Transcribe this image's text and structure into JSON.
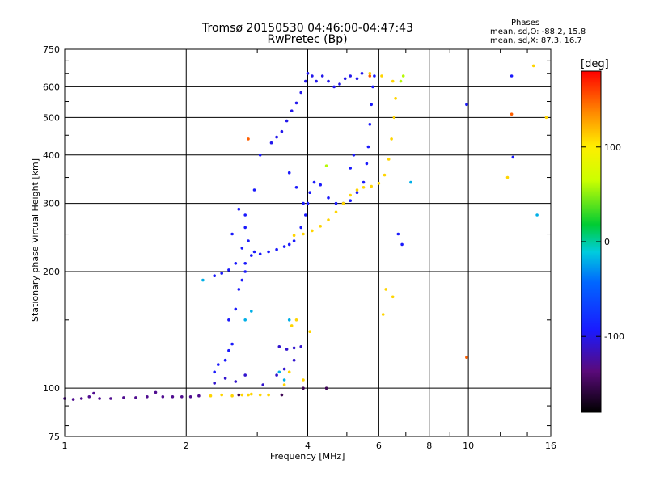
{
  "header": {
    "title_line1": "Tromsø 20150530 04:46:00-04:47:43",
    "title_line2": "RwPretec (Bp)"
  },
  "stats": {
    "heading": "Phases",
    "line_o": "mean, sd,O: -88.2, 15.8",
    "line_x": "mean, sd,X:  87.3, 16.7"
  },
  "chart_data": {
    "type": "scatter",
    "xlabel": "Frequency [MHz]",
    "ylabel": "Stationary phase Virtual Height [km]",
    "x_scale": "log",
    "y_scale": "log",
    "xlim": [
      1,
      16
    ],
    "ylim": [
      75,
      750
    ],
    "x_ticks": [
      1,
      2,
      4,
      6,
      8,
      10,
      16
    ],
    "x_tick_labels": [
      "1",
      "2",
      "4",
      "6",
      "8",
      "10",
      "16"
    ],
    "y_ticks": [
      75,
      100,
      200,
      300,
      400,
      500,
      600,
      750
    ],
    "y_tick_labels": [
      "75",
      "100",
      "200",
      "300",
      "400",
      "500",
      "600",
      "750"
    ],
    "grid": true,
    "colorbar": {
      "label": "[deg]",
      "range": [
        -180,
        180
      ],
      "ticks": [
        -100,
        0,
        100
      ],
      "tick_labels": [
        "-100",
        "0",
        "100"
      ]
    },
    "series": [
      {
        "color_deg": -130,
        "points": [
          [
            1.0,
            94
          ],
          [
            1.05,
            93.5
          ],
          [
            1.1,
            94
          ],
          [
            1.15,
            95
          ],
          [
            1.18,
            97
          ],
          [
            1.22,
            94
          ],
          [
            1.3,
            94
          ],
          [
            1.4,
            94.5
          ],
          [
            1.5,
            94.5
          ],
          [
            1.6,
            95
          ],
          [
            1.68,
            97.5
          ],
          [
            1.75,
            95
          ],
          [
            1.85,
            95
          ],
          [
            1.95,
            95
          ],
          [
            2.05,
            95
          ],
          [
            2.15,
            95.5
          ]
        ]
      },
      {
        "color_deg": 110,
        "points": [
          [
            2.3,
            95.5
          ],
          [
            2.45,
            96
          ],
          [
            2.6,
            95.5
          ],
          [
            2.75,
            96
          ],
          [
            2.9,
            96.5
          ],
          [
            3.05,
            96
          ],
          [
            3.2,
            96
          ]
        ]
      },
      {
        "color_deg": -95,
        "points": [
          [
            2.35,
            110
          ],
          [
            2.4,
            115
          ],
          [
            2.5,
            118
          ],
          [
            2.55,
            125
          ],
          [
            2.6,
            130
          ],
          [
            2.55,
            150
          ],
          [
            2.65,
            160
          ],
          [
            2.7,
            180
          ],
          [
            2.75,
            190
          ],
          [
            2.8,
            200
          ],
          [
            2.8,
            210
          ],
          [
            2.75,
            230
          ],
          [
            2.85,
            240
          ],
          [
            2.8,
            260
          ],
          [
            2.8,
            280
          ],
          [
            2.9,
            220
          ],
          [
            2.95,
            225
          ],
          [
            3.05,
            222
          ],
          [
            3.2,
            225
          ],
          [
            3.35,
            228
          ],
          [
            3.5,
            232
          ],
          [
            3.6,
            235
          ],
          [
            3.7,
            240
          ],
          [
            3.85,
            260
          ],
          [
            3.95,
            280
          ],
          [
            4.0,
            300
          ],
          [
            4.05,
            320
          ],
          [
            4.15,
            340
          ],
          [
            4.3,
            335
          ],
          [
            4.5,
            310
          ],
          [
            4.7,
            300
          ],
          [
            4.9,
            300
          ],
          [
            5.1,
            305
          ],
          [
            5.3,
            320
          ],
          [
            5.5,
            340
          ],
          [
            5.6,
            380
          ],
          [
            5.65,
            420
          ],
          [
            5.7,
            480
          ],
          [
            5.75,
            540
          ],
          [
            5.8,
            600
          ],
          [
            5.85,
            640
          ],
          [
            2.35,
            195
          ],
          [
            2.45,
            198
          ],
          [
            2.55,
            202
          ],
          [
            2.65,
            210
          ]
        ]
      },
      {
        "color_deg": -100,
        "points": [
          [
            3.25,
            430
          ],
          [
            3.35,
            445
          ],
          [
            3.45,
            460
          ],
          [
            3.55,
            490
          ],
          [
            3.65,
            520
          ],
          [
            3.75,
            545
          ],
          [
            3.85,
            580
          ],
          [
            3.95,
            620
          ],
          [
            4.0,
            650
          ],
          [
            4.1,
            640
          ],
          [
            4.2,
            620
          ],
          [
            4.35,
            640
          ],
          [
            4.5,
            620
          ],
          [
            4.65,
            600
          ],
          [
            4.8,
            610
          ],
          [
            4.95,
            630
          ],
          [
            5.1,
            640
          ],
          [
            5.3,
            630
          ],
          [
            5.45,
            650
          ]
        ]
      },
      {
        "color_deg": -110,
        "points": [
          [
            2.35,
            103
          ],
          [
            2.5,
            106
          ],
          [
            2.65,
            104
          ],
          [
            2.8,
            108
          ],
          [
            3.1,
            102
          ],
          [
            3.35,
            108
          ],
          [
            3.5,
            112
          ],
          [
            3.7,
            118
          ],
          [
            3.4,
            128
          ],
          [
            3.55,
            126
          ],
          [
            3.7,
            127
          ],
          [
            3.85,
            128
          ]
        ]
      },
      {
        "color_deg": 110,
        "points": [
          [
            3.7,
            248
          ],
          [
            3.9,
            250
          ],
          [
            4.1,
            255
          ],
          [
            4.3,
            262
          ],
          [
            4.5,
            272
          ],
          [
            4.7,
            285
          ],
          [
            4.9,
            300
          ],
          [
            5.1,
            315
          ],
          [
            5.3,
            325
          ],
          [
            5.5,
            330
          ],
          [
            5.75,
            332
          ],
          [
            6.0,
            338
          ],
          [
            6.2,
            355
          ],
          [
            6.35,
            390
          ],
          [
            6.45,
            440
          ],
          [
            6.55,
            500
          ],
          [
            6.6,
            560
          ],
          [
            6.5,
            620
          ],
          [
            5.7,
            650
          ],
          [
            6.1,
            640
          ],
          [
            3.65,
            145
          ],
          [
            4.05,
            140
          ],
          [
            3.75,
            150
          ],
          [
            3.6,
            110
          ],
          [
            3.9,
            105
          ],
          [
            3.5,
            102
          ],
          [
            6.25,
            180
          ],
          [
            6.5,
            172
          ],
          [
            6.15,
            155
          ],
          [
            2.85,
            96
          ],
          [
            15.6,
            500
          ],
          [
            14.5,
            680
          ],
          [
            12.5,
            350
          ]
        ]
      },
      {
        "color_deg": 60,
        "points": [
          [
            6.8,
            620
          ],
          [
            6.9,
            640
          ],
          [
            4.45,
            375
          ]
        ]
      },
      {
        "color_deg": -20,
        "points": [
          [
            2.9,
            158
          ],
          [
            2.8,
            150
          ],
          [
            3.5,
            105
          ],
          [
            3.4,
            110
          ],
          [
            7.2,
            340
          ],
          [
            14.8,
            280
          ],
          [
            2.2,
            190
          ],
          [
            3.6,
            150
          ]
        ]
      },
      {
        "color_deg": -95,
        "points": [
          [
            3.05,
            400
          ],
          [
            2.95,
            325
          ],
          [
            2.6,
            250
          ],
          [
            2.7,
            290
          ],
          [
            3.6,
            360
          ],
          [
            3.75,
            330
          ],
          [
            3.9,
            300
          ],
          [
            5.1,
            370
          ],
          [
            5.2,
            400
          ],
          [
            6.7,
            250
          ],
          [
            6.85,
            235
          ],
          [
            12.8,
            640
          ],
          [
            9.9,
            540
          ],
          [
            12.9,
            395
          ]
        ]
      },
      {
        "color_deg": 150,
        "points": [
          [
            9.9,
            120
          ],
          [
            12.8,
            510
          ],
          [
            2.85,
            440
          ],
          [
            5.7,
            640
          ]
        ]
      },
      {
        "color_deg": -150,
        "points": [
          [
            3.45,
            96
          ],
          [
            3.9,
            100
          ],
          [
            4.45,
            100
          ],
          [
            2.7,
            96
          ]
        ]
      }
    ]
  }
}
